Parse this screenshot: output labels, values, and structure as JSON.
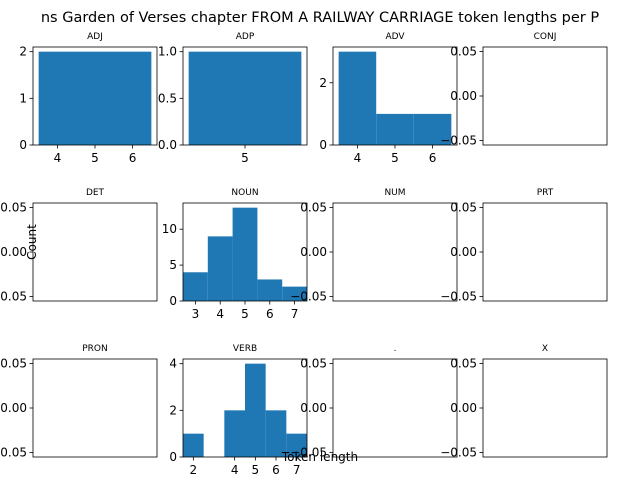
{
  "figure": {
    "suptitle": "ns Garden of Verses chapter FROM A RAILWAY CARRIAGE token lengths per P",
    "xlabel": "Token length",
    "ylabel": "Count",
    "bar_color": "#1f77b4"
  },
  "chart_data": [
    {
      "type": "bar",
      "title": "ADJ",
      "bins": [
        {
          "x0": 3.5,
          "x1": 6.5,
          "count": 2
        }
      ],
      "xlim": [
        3.35,
        6.65
      ],
      "ylim": [
        0,
        2.1
      ],
      "xticks": [
        {
          "v": 4,
          "label": "4"
        },
        {
          "v": 5,
          "label": "5"
        },
        {
          "v": 6,
          "label": "6"
        }
      ],
      "yticks": [
        {
          "v": 0,
          "label": "0"
        },
        {
          "v": 1,
          "label": "1"
        },
        {
          "v": 2,
          "label": "2"
        }
      ]
    },
    {
      "type": "bar",
      "title": "ADP",
      "bins": [
        {
          "x0": 4.0,
          "x1": 6.0,
          "count": 1
        }
      ],
      "xlim": [
        3.9,
        6.1
      ],
      "ylim": [
        0,
        1.05
      ],
      "xticks": [
        {
          "v": 5,
          "label": "5"
        }
      ],
      "yticks": [
        {
          "v": 0,
          "label": "0.0"
        },
        {
          "v": 0.5,
          "label": "0.5"
        },
        {
          "v": 1.0,
          "label": "1.0"
        }
      ]
    },
    {
      "type": "bar",
      "title": "ADV",
      "bins": [
        {
          "x0": 3.5,
          "x1": 4.5,
          "count": 3
        },
        {
          "x0": 4.5,
          "x1": 5.5,
          "count": 1
        },
        {
          "x0": 5.5,
          "x1": 6.5,
          "count": 1
        }
      ],
      "xlim": [
        3.35,
        6.65
      ],
      "ylim": [
        0,
        3.15
      ],
      "xticks": [
        {
          "v": 4,
          "label": "4"
        },
        {
          "v": 5,
          "label": "5"
        },
        {
          "v": 6,
          "label": "6"
        }
      ],
      "yticks": [
        {
          "v": 0,
          "label": "0"
        },
        {
          "v": 2,
          "label": "2"
        }
      ]
    },
    {
      "type": "bar",
      "title": "CONJ",
      "bins": [],
      "xlim": [
        0,
        1
      ],
      "ylim": [
        -0.055,
        0.055
      ],
      "xticks": [],
      "yticks": [
        {
          "v": -0.05,
          "label": "−0.05"
        },
        {
          "v": 0,
          "label": "0.00"
        },
        {
          "v": 0.05,
          "label": "0.05"
        }
      ]
    },
    {
      "type": "bar",
      "title": "DET",
      "bins": [],
      "xlim": [
        0,
        1
      ],
      "ylim": [
        -0.055,
        0.055
      ],
      "xticks": [],
      "yticks": [
        {
          "v": -0.05,
          "label": "−0.05"
        },
        {
          "v": 0,
          "label": "0.00"
        },
        {
          "v": 0.05,
          "label": "0.05"
        }
      ]
    },
    {
      "type": "bar",
      "title": "NOUN",
      "bins": [
        {
          "x0": 2.5,
          "x1": 3.5,
          "count": 4
        },
        {
          "x0": 3.5,
          "x1": 4.5,
          "count": 9
        },
        {
          "x0": 4.5,
          "x1": 5.5,
          "count": 13
        },
        {
          "x0": 5.5,
          "x1": 6.5,
          "count": 3
        },
        {
          "x0": 6.5,
          "x1": 7.5,
          "count": 2
        }
      ],
      "xlim": [
        2.5,
        7.5
      ],
      "ylim": [
        0,
        13.65
      ],
      "xticks": [
        {
          "v": 3,
          "label": "3"
        },
        {
          "v": 4,
          "label": "4"
        },
        {
          "v": 5,
          "label": "5"
        },
        {
          "v": 6,
          "label": "6"
        },
        {
          "v": 7,
          "label": "7"
        }
      ],
      "yticks": [
        {
          "v": 0,
          "label": "0"
        },
        {
          "v": 5,
          "label": "5"
        },
        {
          "v": 10,
          "label": "10"
        }
      ]
    },
    {
      "type": "bar",
      "title": "NUM",
      "bins": [],
      "xlim": [
        0,
        1
      ],
      "ylim": [
        -0.055,
        0.055
      ],
      "xticks": [],
      "yticks": [
        {
          "v": -0.05,
          "label": "−0.05"
        },
        {
          "v": 0,
          "label": "0.00"
        },
        {
          "v": 0.05,
          "label": "0.05"
        }
      ]
    },
    {
      "type": "bar",
      "title": "PRT",
      "bins": [],
      "xlim": [
        0,
        1
      ],
      "ylim": [
        -0.055,
        0.055
      ],
      "xticks": [],
      "yticks": [
        {
          "v": -0.05,
          "label": "−0.05"
        },
        {
          "v": 0,
          "label": "0.00"
        },
        {
          "v": 0.05,
          "label": "0.05"
        }
      ]
    },
    {
      "type": "bar",
      "title": "PRON",
      "bins": [],
      "xlim": [
        0,
        1
      ],
      "ylim": [
        -0.055,
        0.055
      ],
      "xticks": [],
      "yticks": [
        {
          "v": -0.05,
          "label": "−0.05"
        },
        {
          "v": 0,
          "label": "0.00"
        },
        {
          "v": 0.05,
          "label": "0.05"
        }
      ]
    },
    {
      "type": "bar",
      "title": "VERB",
      "bins": [
        {
          "x0": 1.5,
          "x1": 2.5,
          "count": 1
        },
        {
          "x0": 3.5,
          "x1": 4.5,
          "count": 2
        },
        {
          "x0": 4.5,
          "x1": 5.5,
          "count": 4
        },
        {
          "x0": 5.5,
          "x1": 6.5,
          "count": 2
        },
        {
          "x0": 6.5,
          "x1": 7.5,
          "count": 1
        }
      ],
      "xlim": [
        1.5,
        7.5
      ],
      "ylim": [
        0,
        4.2
      ],
      "xticks": [
        {
          "v": 2,
          "label": "2"
        },
        {
          "v": 4,
          "label": "4"
        },
        {
          "v": 5,
          "label": "5"
        },
        {
          "v": 6,
          "label": "6"
        },
        {
          "v": 7,
          "label": "7"
        }
      ],
      "yticks": [
        {
          "v": 0,
          "label": "0"
        },
        {
          "v": 2,
          "label": "2"
        },
        {
          "v": 4,
          "label": "4"
        }
      ]
    },
    {
      "type": "bar",
      "title": ".",
      "bins": [],
      "xlim": [
        0,
        1
      ],
      "ylim": [
        -0.055,
        0.055
      ],
      "xticks": [],
      "yticks": [
        {
          "v": -0.05,
          "label": "−0.05"
        },
        {
          "v": 0,
          "label": "0.00"
        },
        {
          "v": 0.05,
          "label": "0.05"
        }
      ]
    },
    {
      "type": "bar",
      "title": "X",
      "bins": [],
      "xlim": [
        0,
        1
      ],
      "ylim": [
        -0.055,
        0.055
      ],
      "xticks": [],
      "yticks": [
        {
          "v": -0.05,
          "label": "−0.05"
        },
        {
          "v": 0,
          "label": "0.00"
        },
        {
          "v": 0.05,
          "label": "0.05"
        }
      ]
    }
  ]
}
